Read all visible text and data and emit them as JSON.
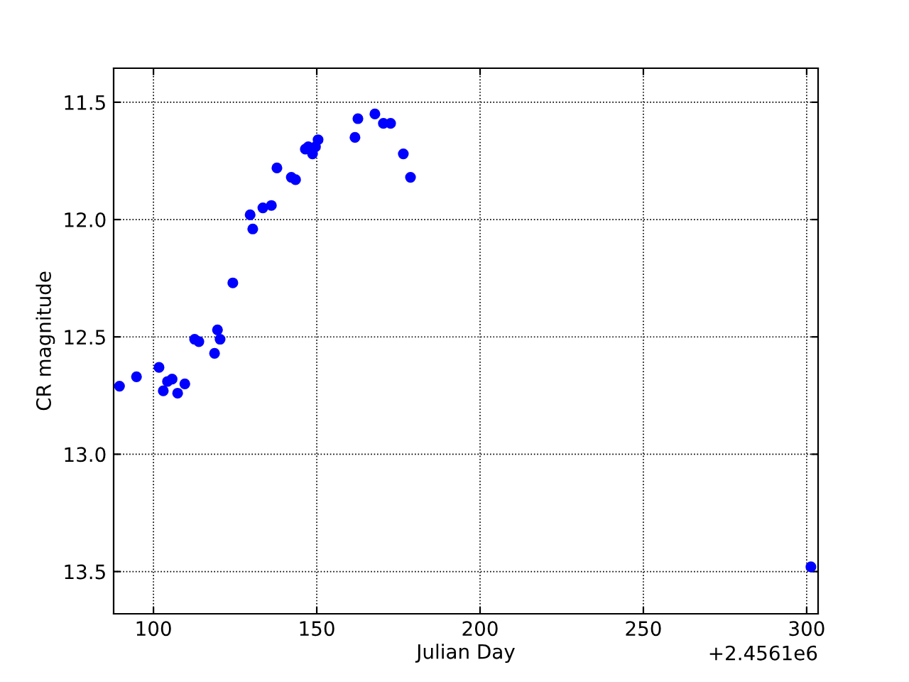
{
  "chart_data": {
    "type": "scatter",
    "xlabel": "Julian Day",
    "ylabel": "CR magnitude",
    "annotations": [
      "+2.4561e6"
    ],
    "x": [
      89.6,
      94.8,
      101.7,
      103.0,
      104.3,
      105.7,
      107.4,
      109.6,
      112.6,
      113.9,
      118.7,
      119.6,
      120.4,
      124.3,
      129.6,
      130.4,
      133.5,
      136.1,
      137.8,
      142.2,
      143.5,
      146.5,
      147.4,
      148.7,
      149.6,
      150.4,
      161.7,
      162.6,
      167.8,
      170.4,
      172.6,
      176.5,
      178.7,
      301.3
    ],
    "series": [
      {
        "color": "#0000ff",
        "values": [
          12.71,
          12.67,
          12.63,
          12.73,
          12.69,
          12.68,
          12.74,
          12.7,
          12.51,
          12.52,
          12.57,
          12.47,
          12.51,
          12.27,
          11.98,
          12.04,
          11.95,
          11.94,
          11.78,
          11.82,
          11.83,
          11.7,
          11.69,
          11.72,
          11.69,
          11.66,
          11.65,
          11.57,
          11.55,
          11.59,
          11.59,
          11.72,
          11.82,
          13.48
        ]
      }
    ],
    "xlim": [
      87.8,
      303.5
    ],
    "ylim": [
      13.68,
      11.355
    ],
    "xticks": [
      100,
      150,
      200,
      250,
      300
    ],
    "yticks": [
      {
        "value": 11.5,
        "label": "11.5"
      },
      {
        "value": 12.0,
        "label": "12.0"
      },
      {
        "value": 12.5,
        "label": "12.5"
      },
      {
        "value": 13.0,
        "label": "13.0"
      },
      {
        "value": 13.5,
        "label": "13.5"
      }
    ],
    "grid": true,
    "marker": "circle"
  }
}
